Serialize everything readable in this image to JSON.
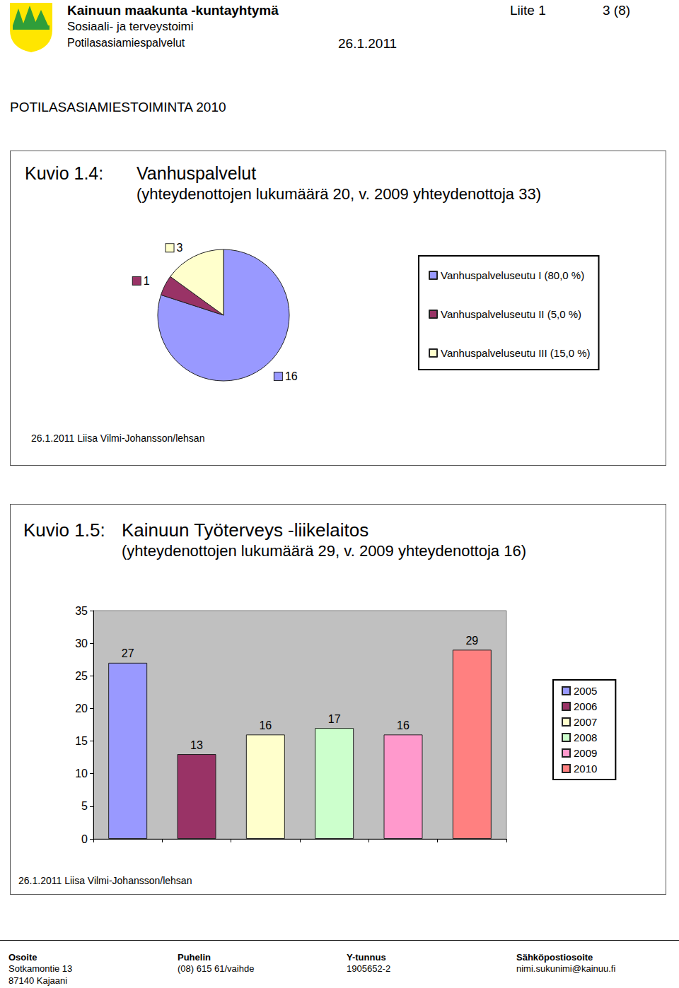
{
  "header": {
    "organization": "Kainuun maakunta -kuntayhtymä",
    "department": "Sosiaali- ja terveystoimi",
    "unit": "Potilasasiamiespalvelut",
    "date": "26.1.2011",
    "attachment": "Liite 1",
    "page": "3 (8)"
  },
  "heading": "POTILASASIAMIESTOIMINTA 2010",
  "figures": [
    {
      "label": "Kuvio 1.4:",
      "credit": "26.1.2011 Liisa Vilmi-Johansson/lehsan"
    },
    {
      "label": "Kuvio 1.5:",
      "credit": "26.1.2011 Liisa Vilmi-Johansson/lehsan"
    }
  ],
  "chart_data": [
    {
      "type": "pie",
      "title": "Vanhuspalvelut",
      "subtitle": "(yhteydenottojen lukumäärä 20, v. 2009 yhteydenottoja 33)",
      "categories": [
        "Vanhuspalveluseutu I (80,0 %)",
        "Vanhuspalveluseutu II (5,0 %)",
        "Vanhuspalveluseutu III (15,0 %)"
      ],
      "values": [
        16,
        1,
        3
      ],
      "colors": [
        "#9999ff",
        "#993366",
        "#ffffcc"
      ],
      "data_labels": true,
      "legend": "right"
    },
    {
      "type": "bar",
      "title": "Kainuun Työterveys -liikelaitos",
      "subtitle": "(yhteydenottojen lukumäärä 29, v. 2009 yhteydenottoja 16)",
      "categories": [
        "2005",
        "2006",
        "2007",
        "2008",
        "2009",
        "2010"
      ],
      "values": [
        27,
        13,
        16,
        17,
        16,
        29
      ],
      "colors": [
        "#9999ff",
        "#993366",
        "#ffffcc",
        "#ccffcc",
        "#ff99cc",
        "#ff8080"
      ],
      "ylim": [
        0,
        35
      ],
      "yticks": [
        0,
        5,
        10,
        15,
        20,
        25,
        30,
        35
      ],
      "grid": false,
      "data_labels": true,
      "tick_labels": "y",
      "legend": "right"
    }
  ],
  "footer": {
    "columns": [
      {
        "heading": "Osoite",
        "lines": [
          "Sotkamontie 13",
          "87140 Kajaani"
        ]
      },
      {
        "heading": "Puhelin",
        "lines": [
          "(08) 615 61/vaihde"
        ]
      },
      {
        "heading": "Y-tunnus",
        "lines": [
          "1905652-2"
        ]
      },
      {
        "heading": "Sähköpostiosoite",
        "lines": [
          "nimi.sukunimi@kainuu.fi"
        ]
      }
    ]
  }
}
